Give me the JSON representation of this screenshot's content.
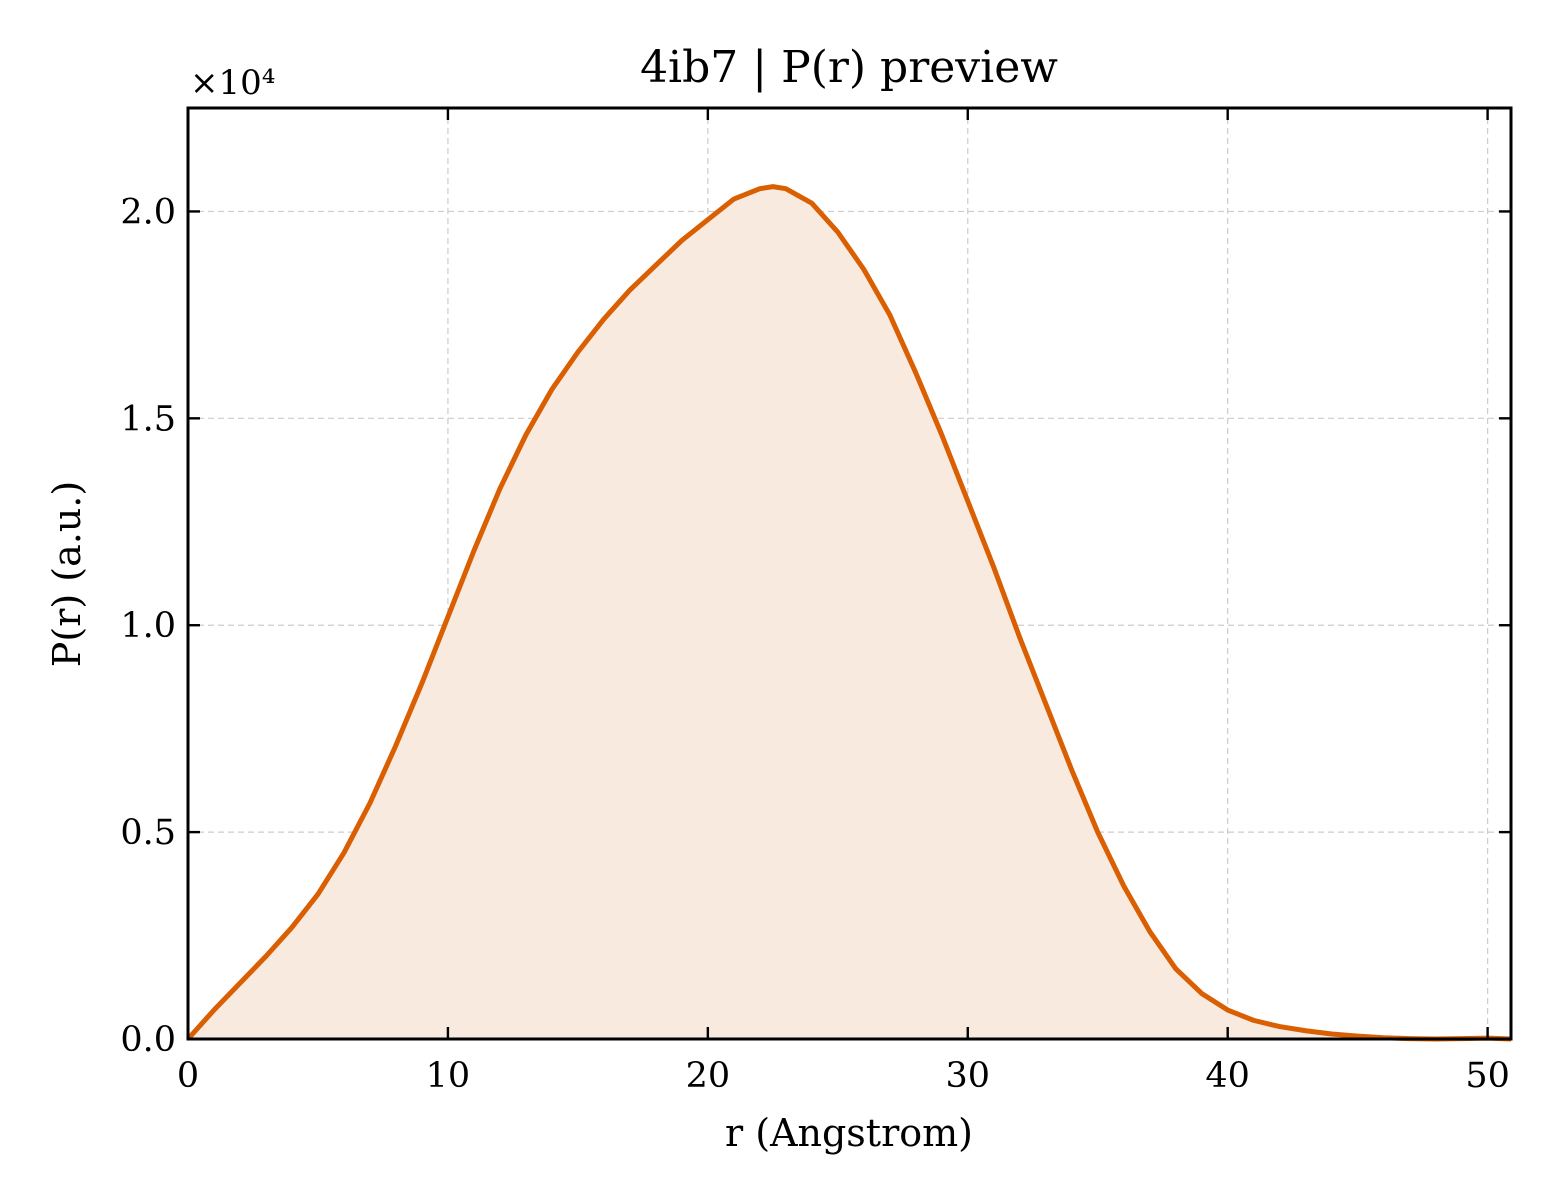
{
  "chart_data": {
    "type": "area",
    "title": "4ib7 | P(r) preview",
    "xlabel": "r (Angstrom)",
    "ylabel": "P(r) (a.u.)",
    "y_exponent_label": "×10⁴",
    "xlim": [
      0,
      50.9
    ],
    "ylim": [
      0,
      2.25
    ],
    "x_ticks": [
      0,
      10,
      20,
      30,
      40,
      50
    ],
    "x_tick_labels": [
      "0",
      "10",
      "20",
      "30",
      "40",
      "50"
    ],
    "y_ticks": [
      0.0,
      0.5,
      1.0,
      1.5,
      2.0
    ],
    "y_tick_labels": [
      "0.0",
      "0.5",
      "1.0",
      "1.5",
      "2.0"
    ],
    "grid": true,
    "colors": {
      "line": "#d95f02",
      "fill": "#f9eae0"
    },
    "series": [
      {
        "x": [
          0,
          1,
          2,
          3,
          4,
          5,
          6,
          7,
          8,
          9,
          10,
          11,
          12,
          13,
          14,
          15,
          16,
          17,
          18,
          19,
          20,
          21,
          22,
          22.5,
          23,
          24,
          25,
          26,
          27,
          28,
          29,
          30,
          31,
          32,
          33,
          34,
          35,
          36,
          37,
          38,
          39,
          40,
          41,
          42,
          43,
          44,
          45,
          46,
          47,
          48,
          49,
          50,
          50.9
        ],
        "y": [
          0.0,
          0.07,
          0.135,
          0.2,
          0.27,
          0.35,
          0.45,
          0.57,
          0.71,
          0.86,
          1.02,
          1.18,
          1.33,
          1.46,
          1.57,
          1.66,
          1.74,
          1.81,
          1.87,
          1.93,
          1.98,
          2.03,
          2.055,
          2.06,
          2.055,
          2.02,
          1.95,
          1.86,
          1.75,
          1.61,
          1.46,
          1.3,
          1.14,
          0.97,
          0.81,
          0.65,
          0.5,
          0.37,
          0.26,
          0.17,
          0.11,
          0.07,
          0.045,
          0.03,
          0.02,
          0.012,
          0.007,
          0.003,
          0.001,
          0.0,
          0.001,
          0.002,
          0.0
        ]
      }
    ]
  }
}
